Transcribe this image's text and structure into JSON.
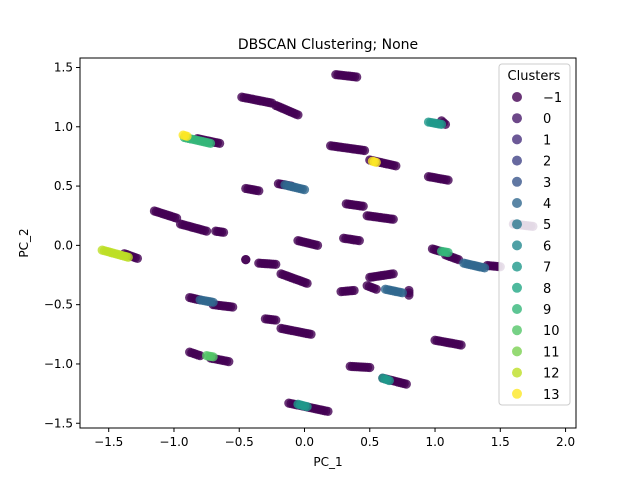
{
  "chart_data": {
    "type": "scatter",
    "title": "DBSCAN Clustering; None",
    "xlabel": "PC_1",
    "ylabel": "PC_2",
    "xlim": [
      -1.72,
      2.08
    ],
    "ylim": [
      -1.54,
      1.58
    ],
    "xticks": [
      -1.5,
      -1.0,
      -0.5,
      0.0,
      0.5,
      1.0,
      1.5,
      2.0
    ],
    "xtick_labels": [
      "−1.5",
      "−1.0",
      "−0.5",
      "0.0",
      "0.5",
      "1.0",
      "1.5",
      "2.0"
    ],
    "yticks": [
      -1.5,
      -1.0,
      -0.5,
      0.0,
      0.5,
      1.0,
      1.5
    ],
    "ytick_labels": [
      "−1.5",
      "−1.0",
      "−0.5",
      "0.0",
      "0.5",
      "1.0",
      "1.5"
    ],
    "grid": false,
    "legend": {
      "title": "Clusters",
      "placement": "top-right",
      "entries": [
        {
          "label": "−1",
          "color": "#440154"
        },
        {
          "label": "0",
          "color": "#481a6c"
        },
        {
          "label": "1",
          "color": "#472f7d"
        },
        {
          "label": "2",
          "color": "#414487"
        },
        {
          "label": "3",
          "color": "#39568c"
        },
        {
          "label": "4",
          "color": "#31688e"
        },
        {
          "label": "5",
          "color": "#2a788e"
        },
        {
          "label": "6",
          "color": "#23888e"
        },
        {
          "label": "7",
          "color": "#1f988b"
        },
        {
          "label": "8",
          "color": "#22a884"
        },
        {
          "label": "9",
          "color": "#35b779"
        },
        {
          "label": "10",
          "color": "#54c568"
        },
        {
          "label": "11",
          "color": "#7ad151"
        },
        {
          "label": "12",
          "color": "#bddf26"
        },
        {
          "label": "13",
          "color": "#fde725"
        }
      ]
    },
    "series": [
      {
        "cluster": "-1",
        "color": "#440154",
        "segments": [
          [
            0.24,
            1.44,
            0.4,
            1.42
          ],
          [
            -0.48,
            1.25,
            -0.25,
            1.2
          ],
          [
            -0.22,
            1.18,
            -0.05,
            1.1
          ],
          [
            0.2,
            0.84,
            0.46,
            0.8
          ],
          [
            0.5,
            0.72,
            0.7,
            0.67
          ],
          [
            0.95,
            0.58,
            1.1,
            0.55
          ],
          [
            -0.82,
            0.9,
            -0.65,
            0.86
          ],
          [
            -0.45,
            0.48,
            -0.35,
            0.46
          ],
          [
            -0.2,
            0.52,
            -0.1,
            0.5
          ],
          [
            0.32,
            0.35,
            0.45,
            0.33
          ],
          [
            0.48,
            0.25,
            0.68,
            0.22
          ],
          [
            -1.15,
            0.29,
            -0.98,
            0.23
          ],
          [
            -0.95,
            0.18,
            -0.75,
            0.12
          ],
          [
            -0.68,
            0.12,
            -0.62,
            0.11
          ],
          [
            -0.05,
            0.04,
            0.1,
            0.0
          ],
          [
            0.3,
            0.06,
            0.42,
            0.04
          ],
          [
            -0.45,
            -0.12,
            -0.45,
            -0.12
          ],
          [
            -0.35,
            -0.15,
            -0.22,
            -0.16
          ],
          [
            -0.18,
            -0.24,
            0.02,
            -0.32
          ],
          [
            0.5,
            -0.27,
            0.68,
            -0.24
          ],
          [
            0.98,
            -0.03,
            1.04,
            -0.05
          ],
          [
            1.08,
            -0.08,
            1.18,
            -0.12
          ],
          [
            1.6,
            0.18,
            1.75,
            0.16
          ],
          [
            1.4,
            -0.17,
            1.5,
            -0.18
          ],
          [
            0.28,
            -0.39,
            0.38,
            -0.38
          ],
          [
            0.48,
            -0.34,
            0.55,
            -0.37
          ],
          [
            0.8,
            -0.38,
            0.8,
            -0.42
          ],
          [
            -0.88,
            -0.44,
            -0.8,
            -0.46
          ],
          [
            -0.7,
            -0.5,
            -0.55,
            -0.52
          ],
          [
            -0.3,
            -0.62,
            -0.22,
            -0.63
          ],
          [
            -0.18,
            -0.7,
            0.05,
            -0.75
          ],
          [
            -0.88,
            -0.9,
            -0.8,
            -0.93
          ],
          [
            -0.72,
            -0.95,
            -0.58,
            -0.98
          ],
          [
            0.35,
            -1.02,
            0.5,
            -1.03
          ],
          [
            1.0,
            -0.8,
            1.2,
            -0.84
          ],
          [
            0.6,
            -1.12,
            0.78,
            -1.17
          ],
          [
            -0.12,
            -1.33,
            0.18,
            -1.4
          ],
          [
            -1.38,
            -0.07,
            -1.28,
            -0.11
          ],
          [
            1.05,
            1.05,
            1.08,
            1.02
          ]
        ]
      },
      {
        "cluster": "4",
        "color": "#31688e",
        "segments": [
          [
            -0.15,
            0.51,
            0.0,
            0.47
          ],
          [
            -0.8,
            -0.46,
            -0.7,
            -0.48
          ],
          [
            0.62,
            -0.37,
            0.75,
            -0.4
          ],
          [
            1.22,
            -0.15,
            1.38,
            -0.19
          ]
        ]
      },
      {
        "cluster": "7",
        "color": "#1f988b",
        "segments": [
          [
            0.95,
            1.04,
            1.05,
            1.02
          ],
          [
            0.6,
            -1.12,
            0.65,
            -1.14
          ],
          [
            -0.05,
            -1.34,
            0.02,
            -1.36
          ]
        ]
      },
      {
        "cluster": "9",
        "color": "#35b779",
        "segments": [
          [
            -0.92,
            0.91,
            -0.72,
            0.86
          ],
          [
            1.05,
            -0.05,
            1.1,
            -0.06
          ]
        ]
      },
      {
        "cluster": "10",
        "color": "#54c568",
        "segments": [
          [
            -0.75,
            -0.93,
            -0.7,
            -0.94
          ]
        ]
      },
      {
        "cluster": "12",
        "color": "#bddf26",
        "segments": [
          [
            -1.55,
            -0.04,
            -1.35,
            -0.1
          ]
        ]
      },
      {
        "cluster": "13",
        "color": "#fde725",
        "segments": [
          [
            -0.93,
            0.93,
            -0.9,
            0.92
          ],
          [
            0.52,
            0.71,
            0.55,
            0.7
          ]
        ]
      }
    ]
  }
}
